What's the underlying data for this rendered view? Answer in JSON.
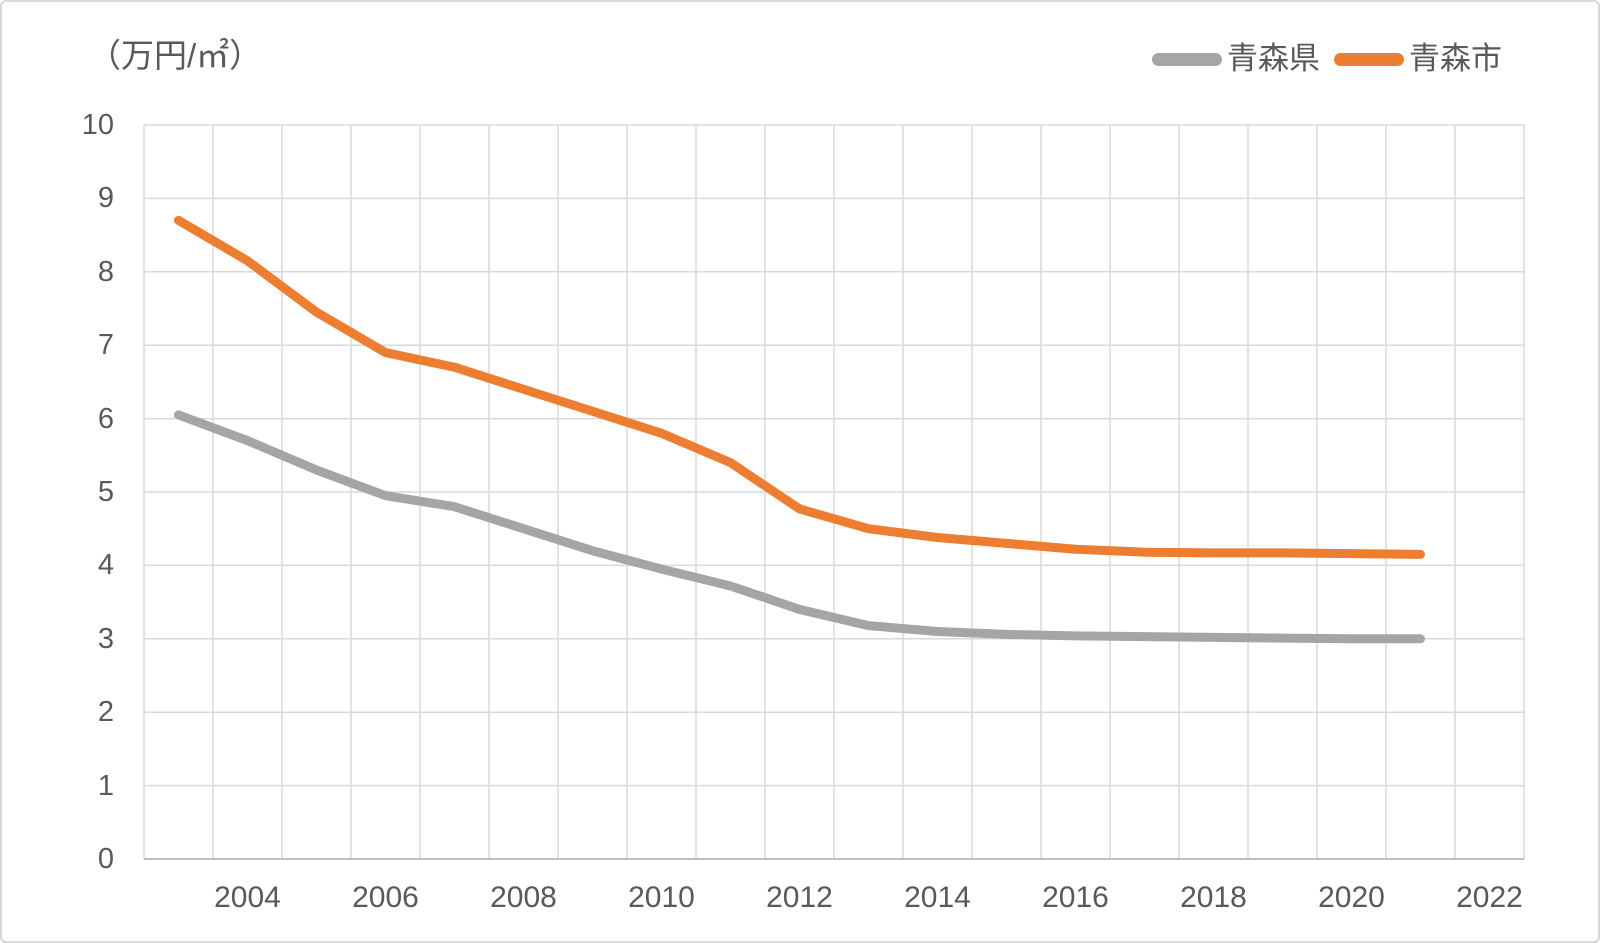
{
  "chart_data": {
    "type": "line",
    "title": "（万円/㎡）",
    "x": [
      2003,
      2004,
      2005,
      2006,
      2007,
      2008,
      2009,
      2010,
      2011,
      2012,
      2013,
      2014,
      2015,
      2016,
      2017,
      2018,
      2019,
      2020,
      2021
    ],
    "x_axis": {
      "start": 2003,
      "end": 2022
    },
    "x_tick_labels": [
      "2004",
      "2006",
      "2008",
      "2010",
      "2012",
      "2014",
      "2016",
      "2018",
      "2020",
      "2022"
    ],
    "y_ticks": [
      0,
      1,
      2,
      3,
      4,
      5,
      6,
      7,
      8,
      9,
      10
    ],
    "ylim": [
      0,
      10
    ],
    "grid": true,
    "legend_position": "top-right",
    "series": [
      {
        "name": "青森県",
        "color": "#A5A5A5",
        "values": [
          6.05,
          5.7,
          5.3,
          4.95,
          4.8,
          4.5,
          4.2,
          3.95,
          3.72,
          3.4,
          3.18,
          3.1,
          3.06,
          3.04,
          3.03,
          3.02,
          3.01,
          3.0,
          3.0
        ]
      },
      {
        "name": "青森市",
        "color": "#ED7D31",
        "values": [
          8.7,
          8.15,
          7.45,
          6.9,
          6.7,
          6.4,
          6.1,
          5.8,
          5.4,
          4.77,
          4.5,
          4.38,
          4.3,
          4.22,
          4.18,
          4.17,
          4.17,
          4.16,
          4.15
        ]
      }
    ],
    "colors": {
      "gridline": "#D9D9D9",
      "axis_line": "#BFBFBF",
      "tick_text": "#595959"
    }
  }
}
